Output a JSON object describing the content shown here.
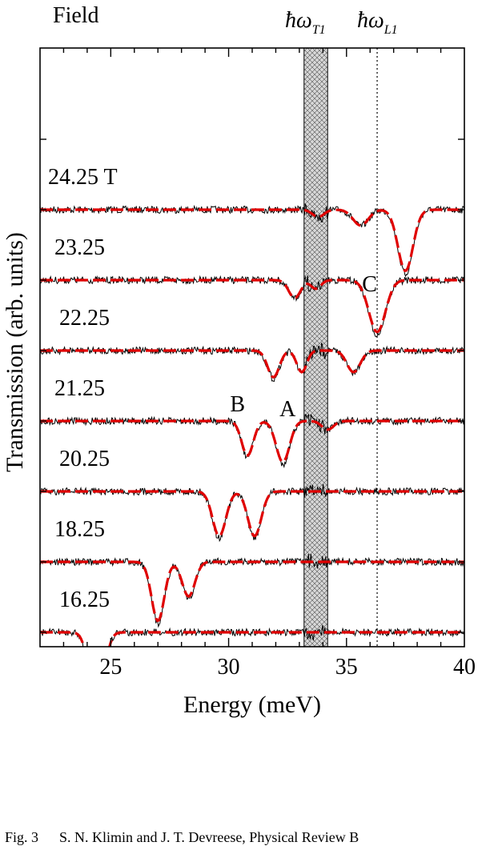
{
  "chart_data": {
    "type": "line",
    "title": "",
    "xlabel": "Energy (meV)",
    "ylabel": "Transmission (arb. units)",
    "xlim": [
      22,
      40
    ],
    "x_ticks": [
      "25",
      "30",
      "35",
      "40"
    ],
    "x_tick_values": [
      25,
      30,
      35,
      40
    ],
    "field_header": "Field",
    "phonon_labels": {
      "transverse": {
        "symbol": "ħω",
        "subscript": "T1",
        "band_range_meV": [
          33.2,
          34.2
        ]
      },
      "longitudinal": {
        "symbol": "ħω",
        "subscript": "L1",
        "energy_meV": 36.3
      }
    },
    "series_style": {
      "experiment_color": "#000000",
      "fit_color": "#e00000"
    },
    "series": [
      {
        "field": "24.25 T",
        "baseline_offset": 7,
        "dips": [
          {
            "center": 33.8,
            "depth": 0.1,
            "width": 0.35
          },
          {
            "center": 35.6,
            "depth": 0.22,
            "width": 0.45
          },
          {
            "center": 37.5,
            "depth": 0.85,
            "width": 0.45
          }
        ]
      },
      {
        "field": "23.25",
        "baseline_offset": 6,
        "dips": [
          {
            "center": 32.8,
            "depth": 0.25,
            "width": 0.35
          },
          {
            "center": 33.7,
            "depth": 0.12,
            "width": 0.3
          },
          {
            "center": 36.3,
            "depth": 0.72,
            "width": 0.5
          }
        ]
      },
      {
        "field": "22.25",
        "baseline_offset": 5,
        "dips": [
          {
            "center": 31.9,
            "depth": 0.37,
            "width": 0.35
          },
          {
            "center": 33.1,
            "depth": 0.3,
            "width": 0.3
          },
          {
            "center": 35.3,
            "depth": 0.3,
            "width": 0.4
          }
        ]
      },
      {
        "field": "21.25",
        "baseline_offset": 4,
        "dips": [
          {
            "center": 30.8,
            "depth": 0.48,
            "width": 0.35
          },
          {
            "center": 32.3,
            "depth": 0.57,
            "width": 0.4
          },
          {
            "center": 34.2,
            "depth": 0.12,
            "width": 0.35
          }
        ]
      },
      {
        "field": "20.25",
        "baseline_offset": 3,
        "dips": [
          {
            "center": 29.6,
            "depth": 0.62,
            "width": 0.4
          },
          {
            "center": 31.1,
            "depth": 0.62,
            "width": 0.4
          }
        ]
      },
      {
        "field": "18.25",
        "baseline_offset": 2,
        "dips": [
          {
            "center": 27.0,
            "depth": 0.82,
            "width": 0.38
          },
          {
            "center": 28.3,
            "depth": 0.48,
            "width": 0.38
          }
        ]
      },
      {
        "field": "16.25",
        "baseline_offset": 1,
        "dips": [
          {
            "center": 24.4,
            "depth": 1.08,
            "width": 0.42
          }
        ]
      }
    ],
    "annotations": [
      {
        "text": "A",
        "series": "21.25",
        "energy_meV": 32.5
      },
      {
        "text": "B",
        "series": "21.25",
        "energy_meV": 30.4
      },
      {
        "text": "C",
        "series": "23.25",
        "energy_meV": 36.0
      }
    ]
  },
  "caption": {
    "figure": "Fig. 3",
    "citation": "S. N. Klimin and J. T. Devreese, Physical Review B"
  }
}
